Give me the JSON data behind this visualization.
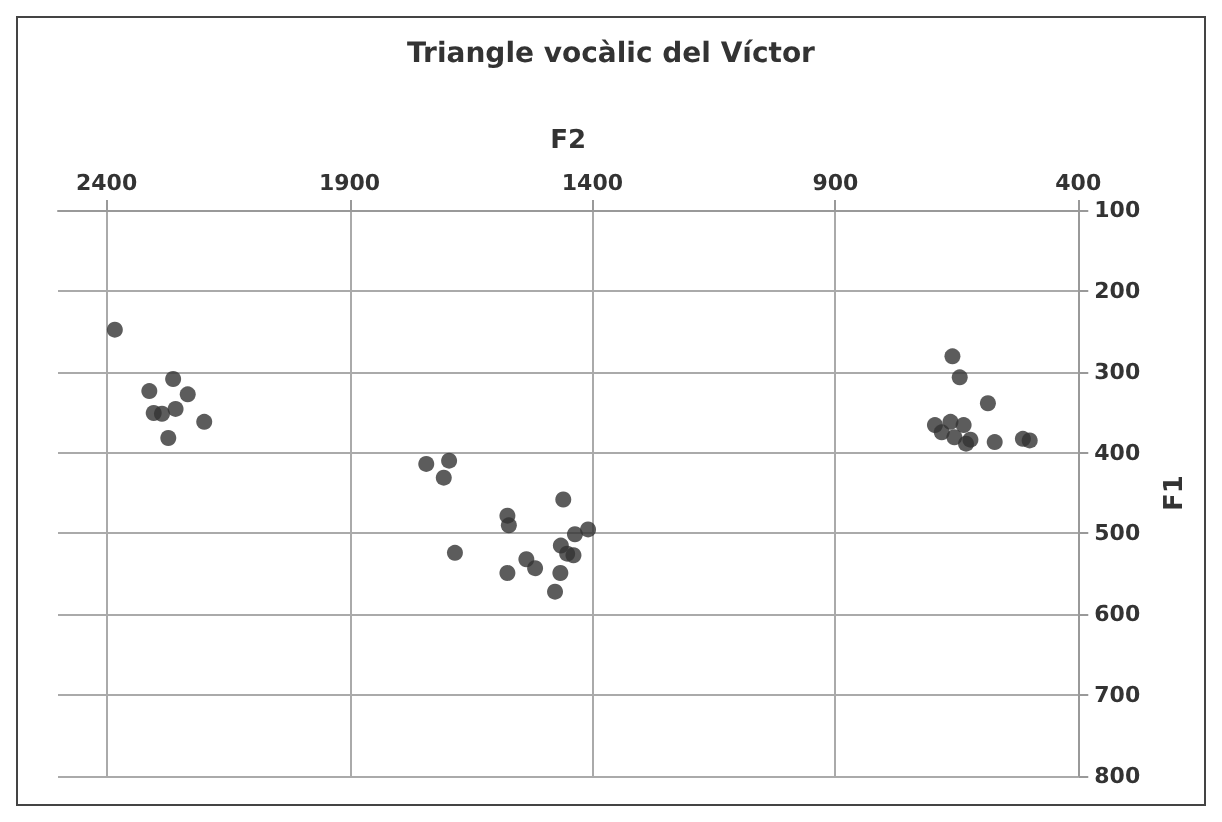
{
  "chart_data": {
    "type": "scatter",
    "title": "Triangle vocàlic del Víctor",
    "xlabel": "F2",
    "ylabel": "F1",
    "x": [
      2383,
      2263,
      2312,
      2233,
      2303,
      2286,
      2258,
      2199,
      2273,
      1742,
      1695,
      1706,
      1460,
      1575,
      1572,
      1683,
      1436,
      1409,
      1465,
      1452,
      1439,
      1536,
      1518,
      1575,
      1466,
      1477,
      659,
      644,
      586,
      695,
      663,
      636,
      681,
      655,
      622,
      631,
      572,
      514,
      500
    ],
    "series": [
      {
        "color": "#333333",
        "values": [
          248,
          309,
          324,
          328,
          351,
          352,
          346,
          362,
          382,
          414,
          410,
          431,
          458,
          478,
          490,
          524,
          501,
          495,
          515,
          525,
          527,
          532,
          543,
          549,
          549,
          572,
          281,
          307,
          339,
          366,
          362,
          366,
          375,
          381,
          384,
          389,
          387,
          383,
          385
        ]
      }
    ],
    "xlim": [
      2500,
      400
    ],
    "xticks": [
      2400,
      1900,
      1400,
      900,
      400
    ],
    "ylim": [
      800,
      100
    ],
    "yticks": [
      100,
      200,
      300,
      400,
      500,
      600,
      700,
      800
    ],
    "grid": true,
    "marker": "circle"
  }
}
